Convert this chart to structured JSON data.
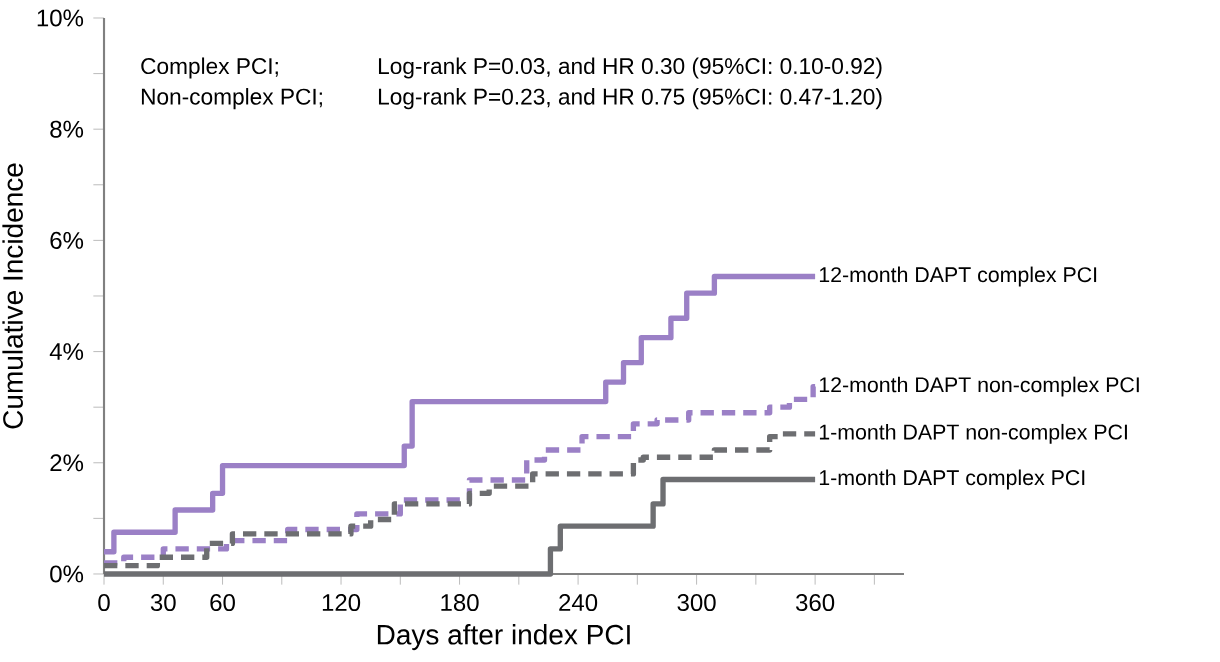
{
  "chart_data": {
    "type": "step",
    "xlabel": "Days after index PCI",
    "ylabel": "Cumulative Incidence",
    "annotations": [
      "Complex PCI;",
      "Log-rank P=0.03, and HR 0.30 (95%CI: 0.10-0.92)",
      "Non-complex PCI;",
      "Log-rank P=0.23, and HR 0.75 (95%CI: 0.47-1.20)"
    ],
    "xlim": [
      0,
      405
    ],
    "ylim": [
      0,
      10
    ],
    "xticks": [
      0,
      30,
      60,
      {
        "value": 90,
        "label": null
      },
      120,
      {
        "value": 150,
        "label": null
      },
      180,
      {
        "value": 210,
        "label": null
      },
      240,
      {
        "value": 270,
        "label": null
      },
      300,
      {
        "value": 330,
        "label": null
      },
      360,
      {
        "value": 390,
        "label": null
      }
    ],
    "yticks": [
      {
        "value": 0,
        "label": "0%"
      },
      {
        "value": 1,
        "label": null
      },
      {
        "value": 2,
        "label": "2%"
      },
      {
        "value": 3,
        "label": null
      },
      {
        "value": 4,
        "label": "4%"
      },
      {
        "value": 5,
        "label": null
      },
      {
        "value": 6,
        "label": "6%"
      },
      {
        "value": 7,
        "label": null
      },
      {
        "value": 8,
        "label": "8%"
      },
      {
        "value": 9,
        "label": null
      },
      {
        "value": 10,
        "label": "10%"
      }
    ],
    "series": [
      {
        "name": "12-month DAPT complex PCI",
        "color": "#9b80c6",
        "line_style": "solid",
        "x": [
          0,
          5,
          36,
          55,
          60,
          152,
          156,
          254,
          263,
          272,
          287,
          295,
          309,
          360
        ],
        "values": [
          0.4,
          0.75,
          1.15,
          1.45,
          1.95,
          2.3,
          3.1,
          3.45,
          3.8,
          4.25,
          4.6,
          5.05,
          5.35,
          5.35
        ]
      },
      {
        "name": "12-month DAPT non-complex PCI",
        "color": "#9b80c6",
        "line_style": "dashed",
        "x": [
          0,
          10,
          30,
          62,
          93,
          128,
          150,
          185,
          214,
          223,
          242,
          268,
          280,
          296,
          337,
          347,
          359,
          360
        ],
        "values": [
          0.2,
          0.3,
          0.45,
          0.6,
          0.8,
          1.08,
          1.33,
          1.69,
          2.05,
          2.23,
          2.47,
          2.7,
          2.77,
          2.9,
          3.0,
          3.14,
          3.37,
          3.37
        ]
      },
      {
        "name": "1-month DAPT non-complex PCI",
        "color": "#6d6e71",
        "line_style": "dashed",
        "x": [
          0,
          27,
          52,
          65,
          125,
          135,
          147,
          185,
          195,
          217,
          268,
          273,
          309,
          337,
          342,
          360
        ],
        "values": [
          0.15,
          0.3,
          0.55,
          0.72,
          0.86,
          0.98,
          1.26,
          1.45,
          1.58,
          1.8,
          2.05,
          2.1,
          2.23,
          2.47,
          2.52,
          2.52
        ]
      },
      {
        "name": "1-month DAPT complex PCI",
        "color": "#6d6e71",
        "line_style": "solid",
        "x": [
          0,
          226,
          231,
          278,
          283,
          360
        ],
        "values": [
          0,
          0.45,
          0.86,
          1.26,
          1.7,
          1.7
        ]
      }
    ]
  }
}
